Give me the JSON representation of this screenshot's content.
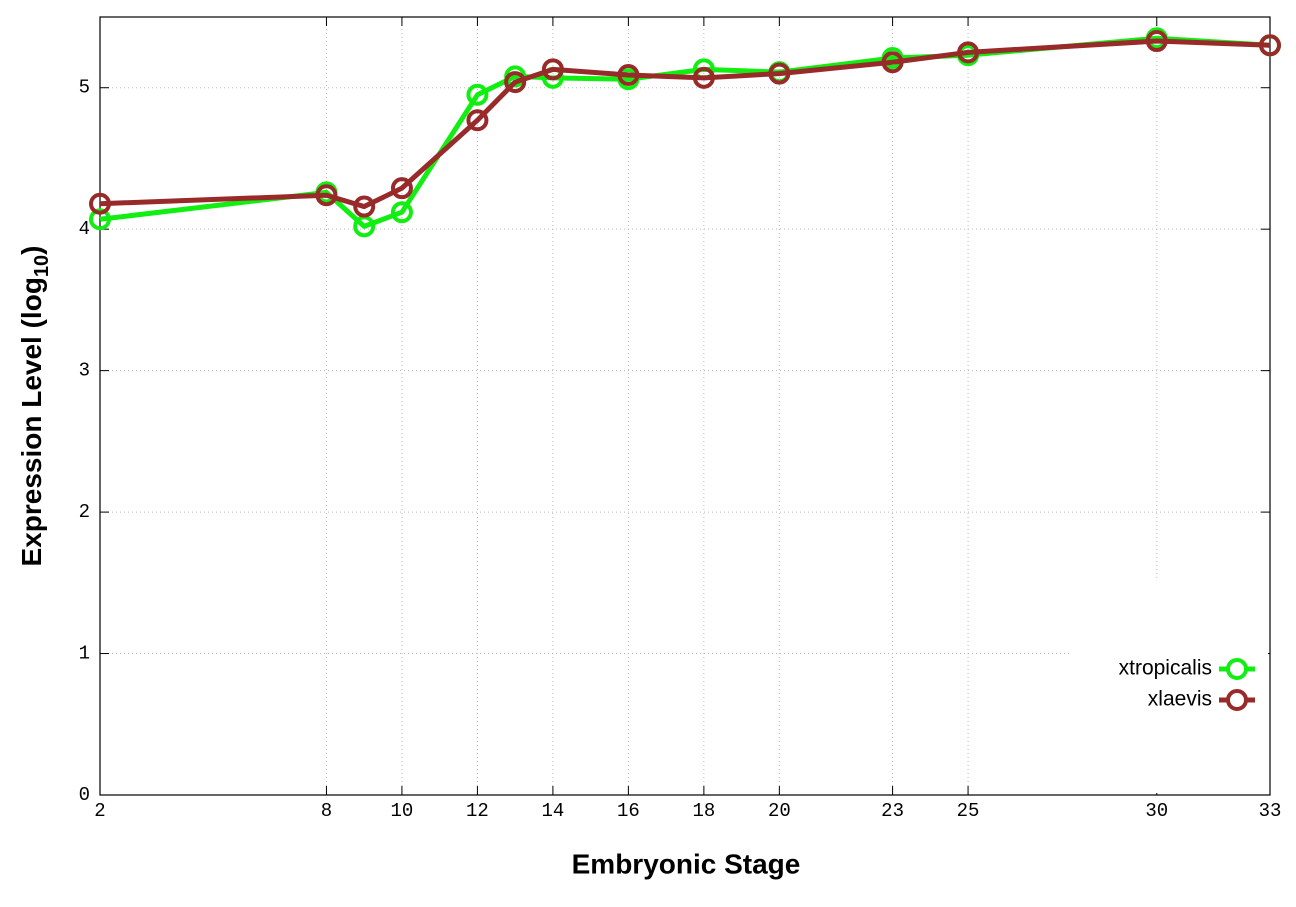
{
  "chart_data": {
    "type": "line",
    "x_label": "Embryonic Stage",
    "y_label": [
      "Expression Level (log",
      "10",
      ")"
    ],
    "x": [
      2,
      8,
      9,
      10,
      12,
      13,
      14,
      16,
      18,
      20,
      23,
      25,
      30,
      33
    ],
    "series": [
      {
        "name": "xtropicalis",
        "color": "#11ee11",
        "values": [
          4.07,
          4.26,
          4.02,
          4.12,
          4.95,
          5.08,
          5.07,
          5.06,
          5.13,
          5.11,
          5.21,
          5.23,
          5.35,
          5.3
        ]
      },
      {
        "name": "xlaevis",
        "color": "#992a2a",
        "values": [
          4.18,
          4.24,
          4.16,
          4.29,
          4.77,
          5.04,
          5.13,
          5.09,
          5.07,
          5.1,
          5.18,
          5.25,
          5.33,
          5.3
        ]
      }
    ],
    "xlim": [
      2,
      33
    ],
    "xticks": [
      2,
      8,
      10,
      12,
      14,
      16,
      18,
      20,
      23,
      25,
      30,
      33
    ],
    "ylim": [
      0,
      5.5
    ],
    "yticks": [
      0,
      1,
      2,
      3,
      4,
      5
    ],
    "grid": true,
    "legend": "bottom right"
  }
}
